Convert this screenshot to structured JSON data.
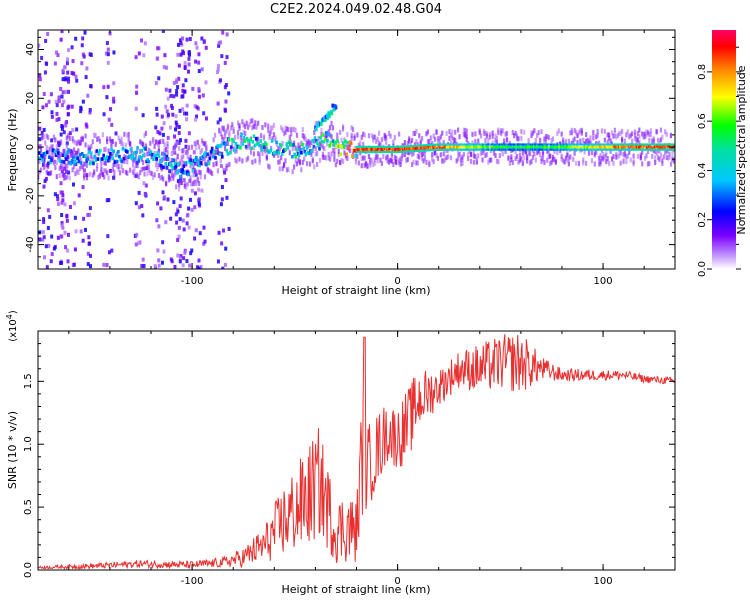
{
  "title": "C2E2.2024.049.02.48.G04",
  "chart_data": [
    {
      "type": "heatmap",
      "xlabel": "Height of straight line (km)",
      "ylabel": "Frequency (Hz)",
      "xlim": [
        -175,
        135
      ],
      "ylim": [
        -50,
        48
      ],
      "xticks": [
        -100,
        0,
        100
      ],
      "yticks": [
        -40,
        -20,
        0,
        20,
        40
      ],
      "colorbar": {
        "label": "Normalized spectral amplitude",
        "range": [
          0,
          0.97
        ],
        "ticks": [
          "0.0",
          "0.2",
          "0.4",
          "0.6",
          "0.8"
        ]
      },
      "ridge": {
        "heights": [
          -175,
          -150,
          -120,
          -105,
          -90,
          -75,
          -60,
          -45,
          -35,
          -30,
          -20,
          -10,
          0,
          20,
          50,
          80,
          110,
          135
        ],
        "frequency_hz": [
          -4,
          -4,
          -3,
          -10,
          -3,
          3,
          0,
          -2,
          4,
          0,
          -1,
          -1,
          -1,
          0,
          0,
          0,
          0,
          0
        ],
        "amplitude": [
          0.35,
          0.4,
          0.4,
          0.4,
          0.45,
          0.5,
          0.45,
          0.5,
          0.55,
          0.6,
          0.85,
          0.9,
          0.9,
          0.85,
          0.55,
          0.6,
          0.85,
          0.9
        ]
      },
      "branch": {
        "heights": [
          -40,
          -30
        ],
        "frequency_hz": [
          8,
          17
        ],
        "amplitude": 0.4
      }
    },
    {
      "type": "line",
      "xlabel": "Height of straight line (km)",
      "ylabel": "SNR (10 * v/v)",
      "y_multiplier": "(x10^4)",
      "xlim": [
        -175,
        135
      ],
      "ylim": [
        0,
        1.9
      ],
      "xticks": [
        -100,
        0,
        100
      ],
      "yticks": [
        0.0,
        0.5,
        1.0,
        1.5
      ],
      "series": [
        {
          "color": "#e83030",
          "x": [
            -175,
            -150,
            -125,
            -100,
            -85,
            -75,
            -65,
            -55,
            -45,
            -38,
            -30,
            -25,
            -20,
            -17,
            -15,
            -10,
            -5,
            0,
            5,
            10,
            20,
            30,
            40,
            50,
            60,
            70,
            80,
            90,
            100,
            110,
            120,
            135
          ],
          "y": [
            0.02,
            0.03,
            0.05,
            0.04,
            0.06,
            0.1,
            0.2,
            0.4,
            0.55,
            0.7,
            0.3,
            0.35,
            0.3,
            1.0,
            0.8,
            0.95,
            1.1,
            1.05,
            1.15,
            1.35,
            1.45,
            1.6,
            1.6,
            1.65,
            1.65,
            1.6,
            1.55,
            1.55,
            1.55,
            1.55,
            1.52,
            1.5
          ],
          "noise": [
            0.01,
            0.02,
            0.03,
            0.03,
            0.04,
            0.08,
            0.15,
            0.3,
            0.4,
            0.45,
            0.25,
            0.3,
            0.25,
            0.55,
            0.35,
            0.3,
            0.25,
            0.25,
            0.3,
            0.25,
            0.15,
            0.15,
            0.2,
            0.22,
            0.25,
            0.1,
            0.05,
            0.05,
            0.04,
            0.04,
            0.03,
            0.03
          ]
        }
      ]
    }
  ]
}
